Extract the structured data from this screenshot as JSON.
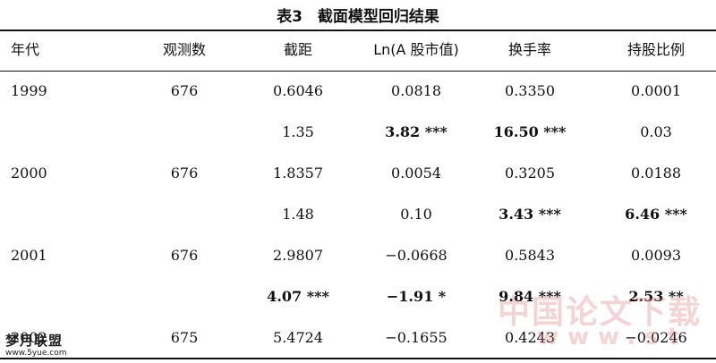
{
  "caption": "表3　截面模型回归结果",
  "columns": [
    "年代",
    "观测数",
    "截距",
    "Ln(A 股市值)",
    "换手率",
    "持股比例"
  ],
  "rows": [
    {
      "cells": [
        "1999",
        "676",
        "0.6046",
        "0.0818",
        "0.3350",
        "0.0001"
      ],
      "bold": [
        false,
        false,
        false,
        false,
        false,
        false
      ]
    },
    {
      "cells": [
        "",
        "",
        "1.35",
        "3.82 ***",
        "16.50 ***",
        "0.03"
      ],
      "bold": [
        false,
        false,
        false,
        true,
        true,
        false
      ]
    },
    {
      "cells": [
        "2000",
        "676",
        "1.8357",
        "0.0054",
        "0.3205",
        "0.0188"
      ],
      "bold": [
        false,
        false,
        false,
        false,
        false,
        false
      ]
    },
    {
      "cells": [
        "",
        "",
        "1.48",
        "0.10",
        "3.43 ***",
        "6.46 ***"
      ],
      "bold": [
        false,
        false,
        false,
        false,
        true,
        true
      ]
    },
    {
      "cells": [
        "2001",
        "676",
        "2.9807",
        "−0.0668",
        "0.5843",
        "0.0093"
      ],
      "bold": [
        false,
        false,
        false,
        false,
        false,
        false
      ]
    },
    {
      "cells": [
        "",
        "",
        "4.07 ***",
        "−1.91 *",
        "9.84 ***",
        "2.53 **"
      ],
      "bold": [
        false,
        false,
        true,
        true,
        true,
        true
      ]
    },
    {
      "cells": [
        "2002",
        "675",
        "5.4724",
        "−0.1655",
        "0.4243",
        "−0.0246"
      ],
      "bold": [
        false,
        false,
        false,
        false,
        false,
        false
      ]
    }
  ],
  "watermarks": {
    "logo": "梦月联盟",
    "logo_url": "www.5yue.com",
    "cn": "中国论文下载",
    "cn_url": "www.st"
  }
}
